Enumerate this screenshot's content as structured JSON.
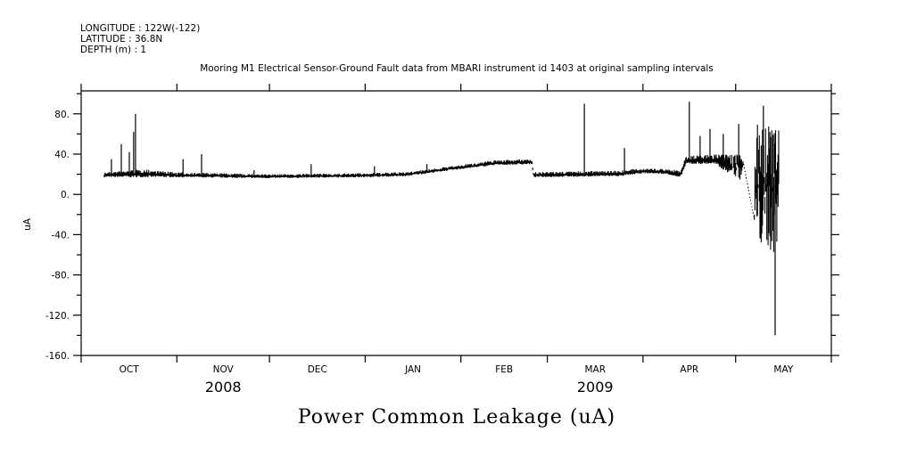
{
  "header": {
    "longitude": "LONGITUDE : 122W(-122)",
    "latitude": "LATITUDE : 36.8N",
    "depth": "DEPTH (m) : 1"
  },
  "chart_data": {
    "type": "line",
    "title": "Mooring M1 Electrical Sensor-Ground Fault data from MBARI instrument id 1403 at original sampling intervals",
    "xlabel": "Power Common Leakage (uA)",
    "ylabel": "uA",
    "x_units": "days since 2008-10-01",
    "xlim": [
      0,
      243
    ],
    "ylim": [
      -160,
      102.8
    ],
    "y_ticks": [
      80,
      40,
      0,
      -40,
      -80,
      -120,
      -160
    ],
    "y_tick_labels": [
      "80.",
      "40.",
      "0.",
      "-40.",
      "-80.",
      "-120.",
      "-160."
    ],
    "y_minor_step": 20,
    "month_boundaries": [
      0,
      31,
      61,
      92,
      123,
      151,
      182,
      212,
      243
    ],
    "month_labels": [
      "OCT",
      "NOV",
      "DEC",
      "JAN",
      "FEB",
      "MAR",
      "APR",
      "MAY"
    ],
    "year_labels": [
      {
        "label": "2008",
        "month_index": 1
      },
      {
        "label": "2009",
        "month_index": 5
      }
    ],
    "envelope_note": "[day, low, high] of the dense sampled signal",
    "envelope": [
      [
        7.5,
        17,
        22
      ],
      [
        20,
        17,
        25
      ],
      [
        30,
        17,
        22
      ],
      [
        60,
        16,
        20
      ],
      [
        90,
        17,
        21
      ],
      [
        105,
        18,
        22
      ],
      [
        120,
        24,
        28
      ],
      [
        134,
        29,
        34
      ],
      [
        146,
        30,
        35
      ],
      [
        146.5,
        17,
        22
      ],
      [
        175,
        18,
        24
      ],
      [
        182,
        21,
        26
      ],
      [
        190,
        20,
        25
      ],
      [
        194,
        16,
        24
      ],
      [
        196,
        30,
        38
      ],
      [
        205,
        30,
        40
      ],
      [
        213.5,
        14,
        40
      ],
      [
        214.5,
        30,
        32
      ],
      [
        218,
        -25,
        -23
      ],
      [
        218.5,
        -55,
        80
      ],
      [
        226,
        -60,
        75
      ]
    ],
    "spikes": [
      [
        9.8,
        35
      ],
      [
        13,
        50
      ],
      [
        15.6,
        42
      ],
      [
        17,
        62
      ],
      [
        17.6,
        80
      ],
      [
        33,
        35
      ],
      [
        39,
        40
      ],
      [
        56,
        24
      ],
      [
        74.5,
        30
      ],
      [
        95,
        28
      ],
      [
        112,
        30
      ],
      [
        163,
        90
      ],
      [
        176,
        46
      ],
      [
        197,
        92
      ],
      [
        200.5,
        58
      ],
      [
        203.7,
        65
      ],
      [
        208,
        60
      ],
      [
        213,
        70
      ],
      [
        221,
        88
      ],
      [
        224.8,
        -140
      ]
    ],
    "grid": false,
    "legend": "none"
  }
}
